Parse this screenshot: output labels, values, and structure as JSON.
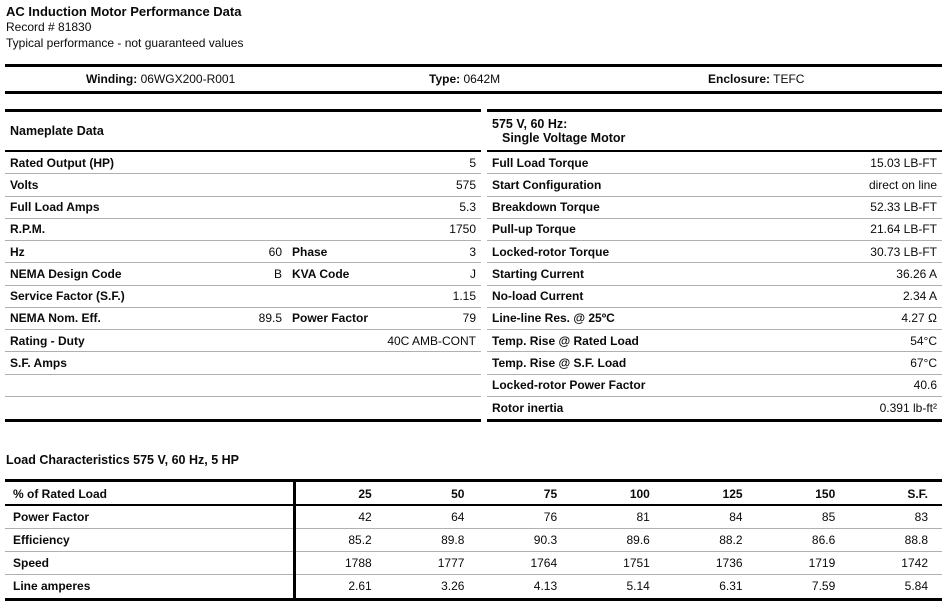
{
  "header": {
    "title": "AC Induction Motor Performance Data",
    "record": "Record # 81830",
    "disclaimer": "Typical performance - not guaranteed values"
  },
  "info_bar": {
    "winding_label": "Winding:",
    "winding_value": "06WGX200-R001",
    "type_label": "Type:",
    "type_value": "0642M",
    "enclosure_label": "Enclosure:",
    "enclosure_value": "TEFC"
  },
  "nameplate": {
    "title": "Nameplate Data",
    "rows": [
      {
        "label": "Rated Output (HP)",
        "value": "5"
      },
      {
        "label": "Volts",
        "value": "575"
      },
      {
        "label": "Full Load Amps",
        "value": "5.3"
      },
      {
        "label": "R.P.M.",
        "value": "1750"
      },
      {
        "label": "Hz",
        "value": "60",
        "label2": "Phase",
        "value2": "3"
      },
      {
        "label": "NEMA Design Code",
        "value": "B",
        "label2": "KVA Code",
        "value2": "J"
      },
      {
        "label": "Service Factor (S.F.)",
        "value": "1.15"
      },
      {
        "label": "NEMA Nom. Eff.",
        "value": "89.5",
        "label2": "Power Factor",
        "value2": "79"
      },
      {
        "label": "Rating - Duty",
        "value": "40C AMB-CONT"
      },
      {
        "label": "S.F. Amps",
        "value": ""
      }
    ]
  },
  "voltage": {
    "title_line1": "575 V, 60 Hz:",
    "title_line2": "Single Voltage Motor",
    "rows": [
      {
        "label": "Full Load Torque",
        "value": "15.03 LB-FT"
      },
      {
        "label": "Start Configuration",
        "value": "direct on line"
      },
      {
        "label": "Breakdown Torque",
        "value": "52.33 LB-FT"
      },
      {
        "label": "Pull-up Torque",
        "value": "21.64 LB-FT"
      },
      {
        "label": "Locked-rotor Torque",
        "value": "30.73 LB-FT"
      },
      {
        "label": "Starting Current",
        "value": "36.26 A"
      },
      {
        "label": "No-load Current",
        "value": "2.34 A"
      },
      {
        "label": "Line-line Res. @ 25ºC",
        "value": "4.27 Ω"
      },
      {
        "label": "Temp. Rise @ Rated Load",
        "value": "54°C"
      },
      {
        "label": "Temp. Rise @ S.F. Load",
        "value": "67°C"
      },
      {
        "label": "Locked-rotor Power Factor",
        "value": "40.6"
      },
      {
        "label": "Rotor inertia",
        "value": "0.391 lb-ft²"
      }
    ]
  },
  "load": {
    "title": "Load Characteristics 575 V, 60 Hz, 5 HP",
    "header": {
      "label": "% of Rated Load",
      "cols": [
        "25",
        "50",
        "75",
        "100",
        "125",
        "150",
        "S.F."
      ]
    },
    "rows": [
      {
        "label": "Power Factor",
        "values": [
          "42",
          "64",
          "76",
          "81",
          "84",
          "85",
          "83"
        ]
      },
      {
        "label": "Efficiency",
        "values": [
          "85.2",
          "89.8",
          "90.3",
          "89.6",
          "88.2",
          "86.6",
          "88.8"
        ]
      },
      {
        "label": "Speed",
        "values": [
          "1788",
          "1777",
          "1764",
          "1751",
          "1736",
          "1719",
          "1742"
        ]
      },
      {
        "label": "Line amperes",
        "values": [
          "2.61",
          "3.26",
          "4.13",
          "5.14",
          "6.31",
          "7.59",
          "5.84"
        ]
      }
    ]
  }
}
